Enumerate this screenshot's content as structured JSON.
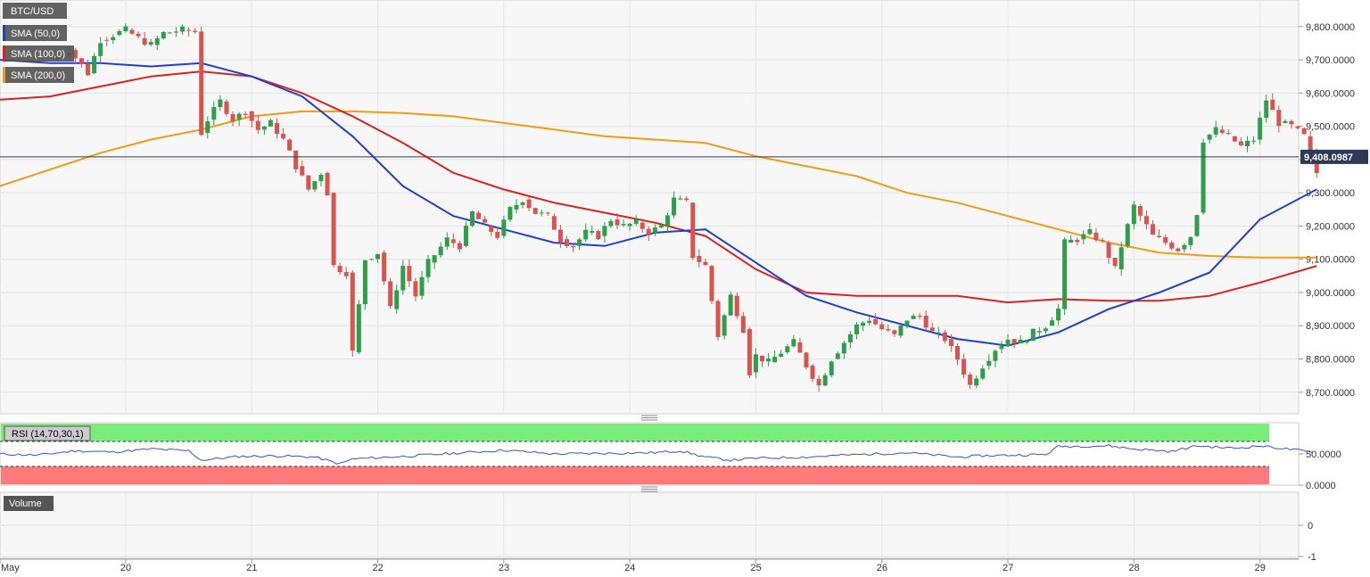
{
  "legend": {
    "symbol": "BTC/USD",
    "sma50": "SMA (50,0)",
    "sma100": "SMA (100,0)",
    "sma200": "SMA (200,0)"
  },
  "rsi_panel": {
    "label": "RSI (14,70,30,1)",
    "yticks": [
      "50.0000",
      "0.0000"
    ]
  },
  "volume_panel": {
    "label": "Volume",
    "yticks": [
      "0",
      "-1"
    ]
  },
  "x_axis": {
    "labels": [
      "May",
      "20",
      "21",
      "22",
      "23",
      "24",
      "25",
      "26",
      "27",
      "28",
      "29"
    ]
  },
  "price_axis": {
    "ticks": [
      "9,800.0000",
      "9,700.0000",
      "9,600.0000",
      "9,500.0000",
      "9,400.0000",
      "9,300.0000",
      "9,200.0000",
      "9,100.0000",
      "9,000.0000",
      "8,900.0000",
      "8,800.0000",
      "8,700.0000"
    ],
    "current_label": "9,408.0987"
  },
  "colors": {
    "up": "#2e9e48",
    "down": "#d9534f",
    "sma50": "#1f3fd1",
    "sma100": "#e02020",
    "sma200": "#f39c12",
    "rsi_line": "#3355cc",
    "overbought": "#77ee77",
    "oversold": "#ff7b7b"
  },
  "chart_data": {
    "type": "candlestick",
    "ylim": [
      8635,
      9880
    ],
    "current_price": 9408.0987,
    "x_day_labels": [
      "May",
      "20",
      "21",
      "22",
      "23",
      "24",
      "25",
      "26",
      "27",
      "28",
      "29"
    ],
    "close_path": [
      [
        19.4,
        9700
      ],
      [
        19.55,
        9730
      ],
      [
        19.7,
        9660
      ],
      [
        19.8,
        9760
      ],
      [
        19.9,
        9775
      ],
      [
        20.0,
        9790
      ],
      [
        20.1,
        9765
      ],
      [
        20.2,
        9745
      ],
      [
        20.3,
        9780
      ],
      [
        20.45,
        9790
      ],
      [
        20.55,
        9785
      ],
      [
        20.6,
        9480
      ],
      [
        20.65,
        9520
      ],
      [
        20.75,
        9575
      ],
      [
        20.85,
        9520
      ],
      [
        20.95,
        9545
      ],
      [
        21.05,
        9490
      ],
      [
        21.15,
        9510
      ],
      [
        21.25,
        9460
      ],
      [
        21.35,
        9380
      ],
      [
        21.45,
        9310
      ],
      [
        21.55,
        9360
      ],
      [
        21.6,
        9300
      ],
      [
        21.65,
        9080
      ],
      [
        21.75,
        9060
      ],
      [
        21.8,
        8820
      ],
      [
        21.9,
        9100
      ],
      [
        22.0,
        9120
      ],
      [
        22.1,
        8950
      ],
      [
        22.2,
        9080
      ],
      [
        22.3,
        8990
      ],
      [
        22.4,
        9090
      ],
      [
        22.55,
        9160
      ],
      [
        22.65,
        9140
      ],
      [
        22.75,
        9240
      ],
      [
        22.85,
        9200
      ],
      [
        22.95,
        9170
      ],
      [
        23.05,
        9250
      ],
      [
        23.15,
        9280
      ],
      [
        23.25,
        9240
      ],
      [
        23.35,
        9230
      ],
      [
        23.45,
        9160
      ],
      [
        23.55,
        9140
      ],
      [
        23.65,
        9180
      ],
      [
        23.75,
        9170
      ],
      [
        23.85,
        9220
      ],
      [
        23.95,
        9200
      ],
      [
        24.05,
        9210
      ],
      [
        24.15,
        9180
      ],
      [
        24.25,
        9200
      ],
      [
        24.35,
        9280
      ],
      [
        24.45,
        9270
      ],
      [
        24.5,
        9110
      ],
      [
        24.6,
        9080
      ],
      [
        24.7,
        8870
      ],
      [
        24.8,
        8990
      ],
      [
        24.9,
        8890
      ],
      [
        24.95,
        8760
      ],
      [
        25.0,
        8810
      ],
      [
        25.1,
        8790
      ],
      [
        25.2,
        8820
      ],
      [
        25.3,
        8850
      ],
      [
        25.4,
        8780
      ],
      [
        25.5,
        8720
      ],
      [
        25.6,
        8800
      ],
      [
        25.7,
        8850
      ],
      [
        25.8,
        8900
      ],
      [
        25.9,
        8920
      ],
      [
        26.0,
        8890
      ],
      [
        26.1,
        8870
      ],
      [
        26.2,
        8920
      ],
      [
        26.3,
        8930
      ],
      [
        26.4,
        8880
      ],
      [
        26.5,
        8860
      ],
      [
        26.6,
        8800
      ],
      [
        26.7,
        8720
      ],
      [
        26.8,
        8780
      ],
      [
        26.9,
        8830
      ],
      [
        27.0,
        8860
      ],
      [
        27.1,
        8850
      ],
      [
        27.2,
        8880
      ],
      [
        27.3,
        8900
      ],
      [
        27.4,
        8950
      ],
      [
        27.45,
        9150
      ],
      [
        27.55,
        9160
      ],
      [
        27.65,
        9180
      ],
      [
        27.75,
        9150
      ],
      [
        27.85,
        9070
      ],
      [
        27.9,
        9140
      ],
      [
        28.0,
        9260
      ],
      [
        28.05,
        9230
      ],
      [
        28.15,
        9170
      ],
      [
        28.25,
        9150
      ],
      [
        28.35,
        9130
      ],
      [
        28.45,
        9170
      ],
      [
        28.5,
        9240
      ],
      [
        28.55,
        9460
      ],
      [
        28.65,
        9490
      ],
      [
        28.75,
        9470
      ],
      [
        28.85,
        9440
      ],
      [
        28.95,
        9460
      ],
      [
        29.05,
        9580
      ],
      [
        29.15,
        9510
      ],
      [
        29.25,
        9500
      ],
      [
        29.35,
        9470
      ],
      [
        29.45,
        9360
      ]
    ],
    "sma50": [
      [
        19.0,
        9700
      ],
      [
        19.4,
        9690
      ],
      [
        19.8,
        9690
      ],
      [
        20.2,
        9680
      ],
      [
        20.6,
        9690
      ],
      [
        21.0,
        9650
      ],
      [
        21.4,
        9590
      ],
      [
        21.8,
        9470
      ],
      [
        22.2,
        9320
      ],
      [
        22.6,
        9230
      ],
      [
        23.0,
        9190
      ],
      [
        23.4,
        9150
      ],
      [
        23.8,
        9140
      ],
      [
        24.2,
        9180
      ],
      [
        24.6,
        9190
      ],
      [
        25.0,
        9090
      ],
      [
        25.4,
        8990
      ],
      [
        25.8,
        8940
      ],
      [
        26.2,
        8900
      ],
      [
        26.6,
        8860
      ],
      [
        27.0,
        8840
      ],
      [
        27.4,
        8880
      ],
      [
        27.8,
        8950
      ],
      [
        28.2,
        9000
      ],
      [
        28.6,
        9060
      ],
      [
        29.0,
        9220
      ],
      [
        29.45,
        9310
      ]
    ],
    "sma100": [
      [
        19.0,
        9580
      ],
      [
        19.4,
        9590
      ],
      [
        19.8,
        9620
      ],
      [
        20.2,
        9650
      ],
      [
        20.6,
        9665
      ],
      [
        21.0,
        9650
      ],
      [
        21.4,
        9600
      ],
      [
        21.8,
        9530
      ],
      [
        22.2,
        9450
      ],
      [
        22.6,
        9360
      ],
      [
        23.0,
        9310
      ],
      [
        23.4,
        9270
      ],
      [
        23.8,
        9240
      ],
      [
        24.2,
        9210
      ],
      [
        24.6,
        9170
      ],
      [
        25.0,
        9070
      ],
      [
        25.4,
        9000
      ],
      [
        25.8,
        8990
      ],
      [
        26.2,
        8990
      ],
      [
        26.6,
        8990
      ],
      [
        27.0,
        8970
      ],
      [
        27.4,
        8980
      ],
      [
        27.8,
        8975
      ],
      [
        28.2,
        8975
      ],
      [
        28.6,
        8990
      ],
      [
        29.0,
        9030
      ],
      [
        29.45,
        9080
      ]
    ],
    "sma200": [
      [
        19.0,
        9320
      ],
      [
        19.4,
        9370
      ],
      [
        19.8,
        9420
      ],
      [
        20.2,
        9460
      ],
      [
        20.6,
        9490
      ],
      [
        21.0,
        9530
      ],
      [
        21.4,
        9545
      ],
      [
        21.8,
        9545
      ],
      [
        22.2,
        9540
      ],
      [
        22.6,
        9530
      ],
      [
        23.0,
        9510
      ],
      [
        23.4,
        9490
      ],
      [
        23.8,
        9470
      ],
      [
        24.2,
        9460
      ],
      [
        24.6,
        9450
      ],
      [
        25.0,
        9410
      ],
      [
        25.4,
        9380
      ],
      [
        25.8,
        9350
      ],
      [
        26.2,
        9300
      ],
      [
        26.6,
        9270
      ],
      [
        27.0,
        9230
      ],
      [
        27.4,
        9190
      ],
      [
        27.8,
        9150
      ],
      [
        28.2,
        9120
      ],
      [
        28.6,
        9110
      ],
      [
        29.0,
        9105
      ],
      [
        29.45,
        9105
      ]
    ],
    "rsi": {
      "overbought": 70,
      "oversold": 30,
      "ylim": [
        0,
        100
      ],
      "values": [
        [
          19.0,
          50
        ],
        [
          19.3,
          48
        ],
        [
          19.6,
          55
        ],
        [
          19.9,
          53
        ],
        [
          20.2,
          58
        ],
        [
          20.5,
          55
        ],
        [
          20.6,
          40
        ],
        [
          20.9,
          46
        ],
        [
          21.2,
          47
        ],
        [
          21.5,
          45
        ],
        [
          21.7,
          34
        ],
        [
          21.8,
          42
        ],
        [
          22.2,
          46
        ],
        [
          22.6,
          51
        ],
        [
          23.0,
          56
        ],
        [
          23.4,
          50
        ],
        [
          23.8,
          51
        ],
        [
          24.2,
          52
        ],
        [
          24.4,
          55
        ],
        [
          24.6,
          45
        ],
        [
          24.8,
          40
        ],
        [
          25.0,
          43
        ],
        [
          25.4,
          45
        ],
        [
          25.8,
          49
        ],
        [
          26.2,
          52
        ],
        [
          26.6,
          45
        ],
        [
          26.8,
          47
        ],
        [
          27.0,
          48
        ],
        [
          27.3,
          49
        ],
        [
          27.4,
          62
        ],
        [
          27.8,
          63
        ],
        [
          28.0,
          58
        ],
        [
          28.3,
          54
        ],
        [
          28.5,
          63
        ],
        [
          28.8,
          59
        ],
        [
          29.0,
          63
        ],
        [
          29.3,
          56
        ],
        [
          29.45,
          51
        ]
      ]
    }
  }
}
